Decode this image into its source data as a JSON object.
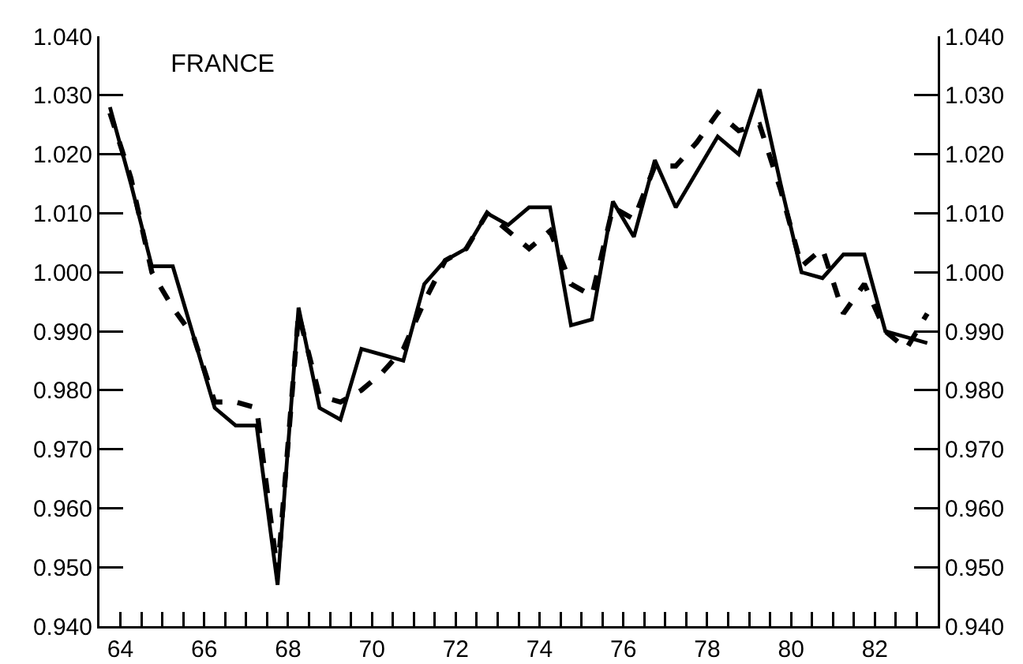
{
  "chart_data": {
    "type": "line",
    "title": "FRANCE",
    "x": [
      64.25,
      64.75,
      65.25,
      65.75,
      66.25,
      66.75,
      67.25,
      67.75,
      68.25,
      68.75,
      69.25,
      69.75,
      70.25,
      70.75,
      71.25,
      71.75,
      72.25,
      72.75,
      73.25,
      73.75,
      74.25,
      74.75,
      75.25,
      75.75,
      76.25,
      76.75,
      77.25,
      77.75,
      78.25,
      78.75,
      79.25,
      79.75,
      80.25,
      80.75,
      81.25,
      81.75,
      82.25,
      82.75,
      83.25,
      83.75
    ],
    "series": [
      {
        "color": "#000000",
        "line_style": "solid",
        "values": [
          1.028,
          1.015,
          1.001,
          1.001,
          0.989,
          0.977,
          0.974,
          0.974,
          0.947,
          0.994,
          0.977,
          0.975,
          0.987,
          0.986,
          0.985,
          0.998,
          1.002,
          1.004,
          1.01,
          1.008,
          1.011,
          1.011,
          0.991,
          0.992,
          1.012,
          1.006,
          1.019,
          1.011,
          1.017,
          1.023,
          1.02,
          1.031,
          1.015,
          1.0,
          0.999,
          1.003,
          1.003,
          0.99,
          0.989,
          0.988
        ]
      },
      {
        "color": "#000000",
        "line_style": "dashed",
        "values": [
          1.027,
          1.016,
          1.0,
          0.994,
          0.989,
          0.978,
          0.978,
          0.977,
          0.949,
          0.993,
          0.979,
          0.978,
          0.98,
          0.983,
          0.987,
          0.995,
          1.002,
          1.004,
          1.01,
          1.007,
          1.004,
          1.007,
          0.998,
          0.996,
          1.011,
          1.009,
          1.018,
          1.018,
          1.022,
          1.027,
          1.024,
          1.025,
          1.014,
          1.001,
          1.004,
          0.993,
          0.998,
          0.99,
          0.987,
          0.993
        ]
      }
    ],
    "xlim": [
      64,
      84
    ],
    "xticks": [
      {
        "value": 64,
        "label": null
      },
      {
        "value": 64.5,
        "label": "64"
      },
      {
        "value": 65,
        "label": null
      },
      {
        "value": 65.5,
        "label": null
      },
      {
        "value": 66,
        "label": null
      },
      {
        "value": 66.5,
        "label": "66"
      },
      {
        "value": 67,
        "label": null
      },
      {
        "value": 67.5,
        "label": null
      },
      {
        "value": 68,
        "label": null
      },
      {
        "value": 68.5,
        "label": "68"
      },
      {
        "value": 69,
        "label": null
      },
      {
        "value": 69.5,
        "label": null
      },
      {
        "value": 70,
        "label": null
      },
      {
        "value": 70.5,
        "label": "70"
      },
      {
        "value": 71,
        "label": null
      },
      {
        "value": 71.5,
        "label": null
      },
      {
        "value": 72,
        "label": null
      },
      {
        "value": 72.5,
        "label": "72"
      },
      {
        "value": 73,
        "label": null
      },
      {
        "value": 73.5,
        "label": null
      },
      {
        "value": 74,
        "label": null
      },
      {
        "value": 74.5,
        "label": "74"
      },
      {
        "value": 75,
        "label": null
      },
      {
        "value": 75.5,
        "label": null
      },
      {
        "value": 76,
        "label": null
      },
      {
        "value": 76.5,
        "label": "76"
      },
      {
        "value": 77,
        "label": null
      },
      {
        "value": 77.5,
        "label": null
      },
      {
        "value": 78,
        "label": null
      },
      {
        "value": 78.5,
        "label": "78"
      },
      {
        "value": 79,
        "label": null
      },
      {
        "value": 79.5,
        "label": null
      },
      {
        "value": 80,
        "label": null
      },
      {
        "value": 80.5,
        "label": "80"
      },
      {
        "value": 81,
        "label": null
      },
      {
        "value": 81.5,
        "label": null
      },
      {
        "value": 82,
        "label": null
      },
      {
        "value": 82.5,
        "label": "82"
      },
      {
        "value": 83,
        "label": null
      },
      {
        "value": 83.5,
        "label": null
      }
    ],
    "ylim": [
      0.94,
      1.04
    ],
    "yticks": [
      {
        "value": 0.94,
        "label": "0.940"
      },
      {
        "value": 0.95,
        "label": "0.950"
      },
      {
        "value": 0.96,
        "label": "0.960"
      },
      {
        "value": 0.97,
        "label": "0.970"
      },
      {
        "value": 0.98,
        "label": "0.980"
      },
      {
        "value": 0.99,
        "label": "0.990"
      },
      {
        "value": 1.0,
        "label": "1.000"
      },
      {
        "value": 1.01,
        "label": "1.010"
      },
      {
        "value": 1.02,
        "label": "1.020"
      },
      {
        "value": 1.03,
        "label": "1.030"
      },
      {
        "value": 1.04,
        "label": "1.040"
      }
    ],
    "y2lim": [
      0.94,
      1.04
    ],
    "y2ticks": [
      {
        "value": 0.94,
        "label": "0.940"
      },
      {
        "value": 0.95,
        "label": "0.950"
      },
      {
        "value": 0.96,
        "label": "0.960"
      },
      {
        "value": 0.97,
        "label": "0.970"
      },
      {
        "value": 0.98,
        "label": "0.980"
      },
      {
        "value": 0.99,
        "label": "0.990"
      },
      {
        "value": 1.0,
        "label": "1.000"
      },
      {
        "value": 1.01,
        "label": "1.010"
      },
      {
        "value": 1.02,
        "label": "1.020"
      },
      {
        "value": 1.03,
        "label": "1.030"
      },
      {
        "value": 1.04,
        "label": "1.040"
      }
    ]
  }
}
